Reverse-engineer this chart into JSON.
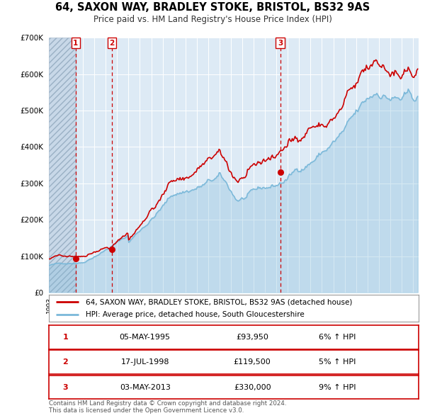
{
  "title": "64, SAXON WAY, BRADLEY STOKE, BRISTOL, BS32 9AS",
  "subtitle": "Price paid vs. HM Land Registry's House Price Index (HPI)",
  "legend_line1": "64, SAXON WAY, BRADLEY STOKE, BRISTOL, BS32 9AS (detached house)",
  "legend_line2": "HPI: Average price, detached house, South Gloucestershire",
  "footer1": "Contains HM Land Registry data © Crown copyright and database right 2024.",
  "footer2": "This data is licensed under the Open Government Licence v3.0.",
  "transactions": [
    {
      "num": 1,
      "date": "05-MAY-1995",
      "price": "£93,950",
      "pct": "6% ↑ HPI",
      "year": 1995.35
    },
    {
      "num": 2,
      "date": "17-JUL-1998",
      "price": "£119,500",
      "pct": "5% ↑ HPI",
      "year": 1998.54
    },
    {
      "num": 3,
      "date": "03-MAY-2013",
      "price": "£330,000",
      "pct": "9% ↑ HPI",
      "year": 2013.33
    }
  ],
  "hpi_color": "#7ab8d9",
  "price_color": "#cc0000",
  "bg_color": "#ddeaf5",
  "hatch_bg": "#c8d8e8",
  "grid_color": "#ffffff",
  "ylim": [
    0,
    700000
  ],
  "xlim_start": 1993.0,
  "xlim_end": 2025.5,
  "vline_color": "#cc0000",
  "marker_color": "#cc0000",
  "marker_price_vals": [
    93950,
    119500,
    330000
  ]
}
